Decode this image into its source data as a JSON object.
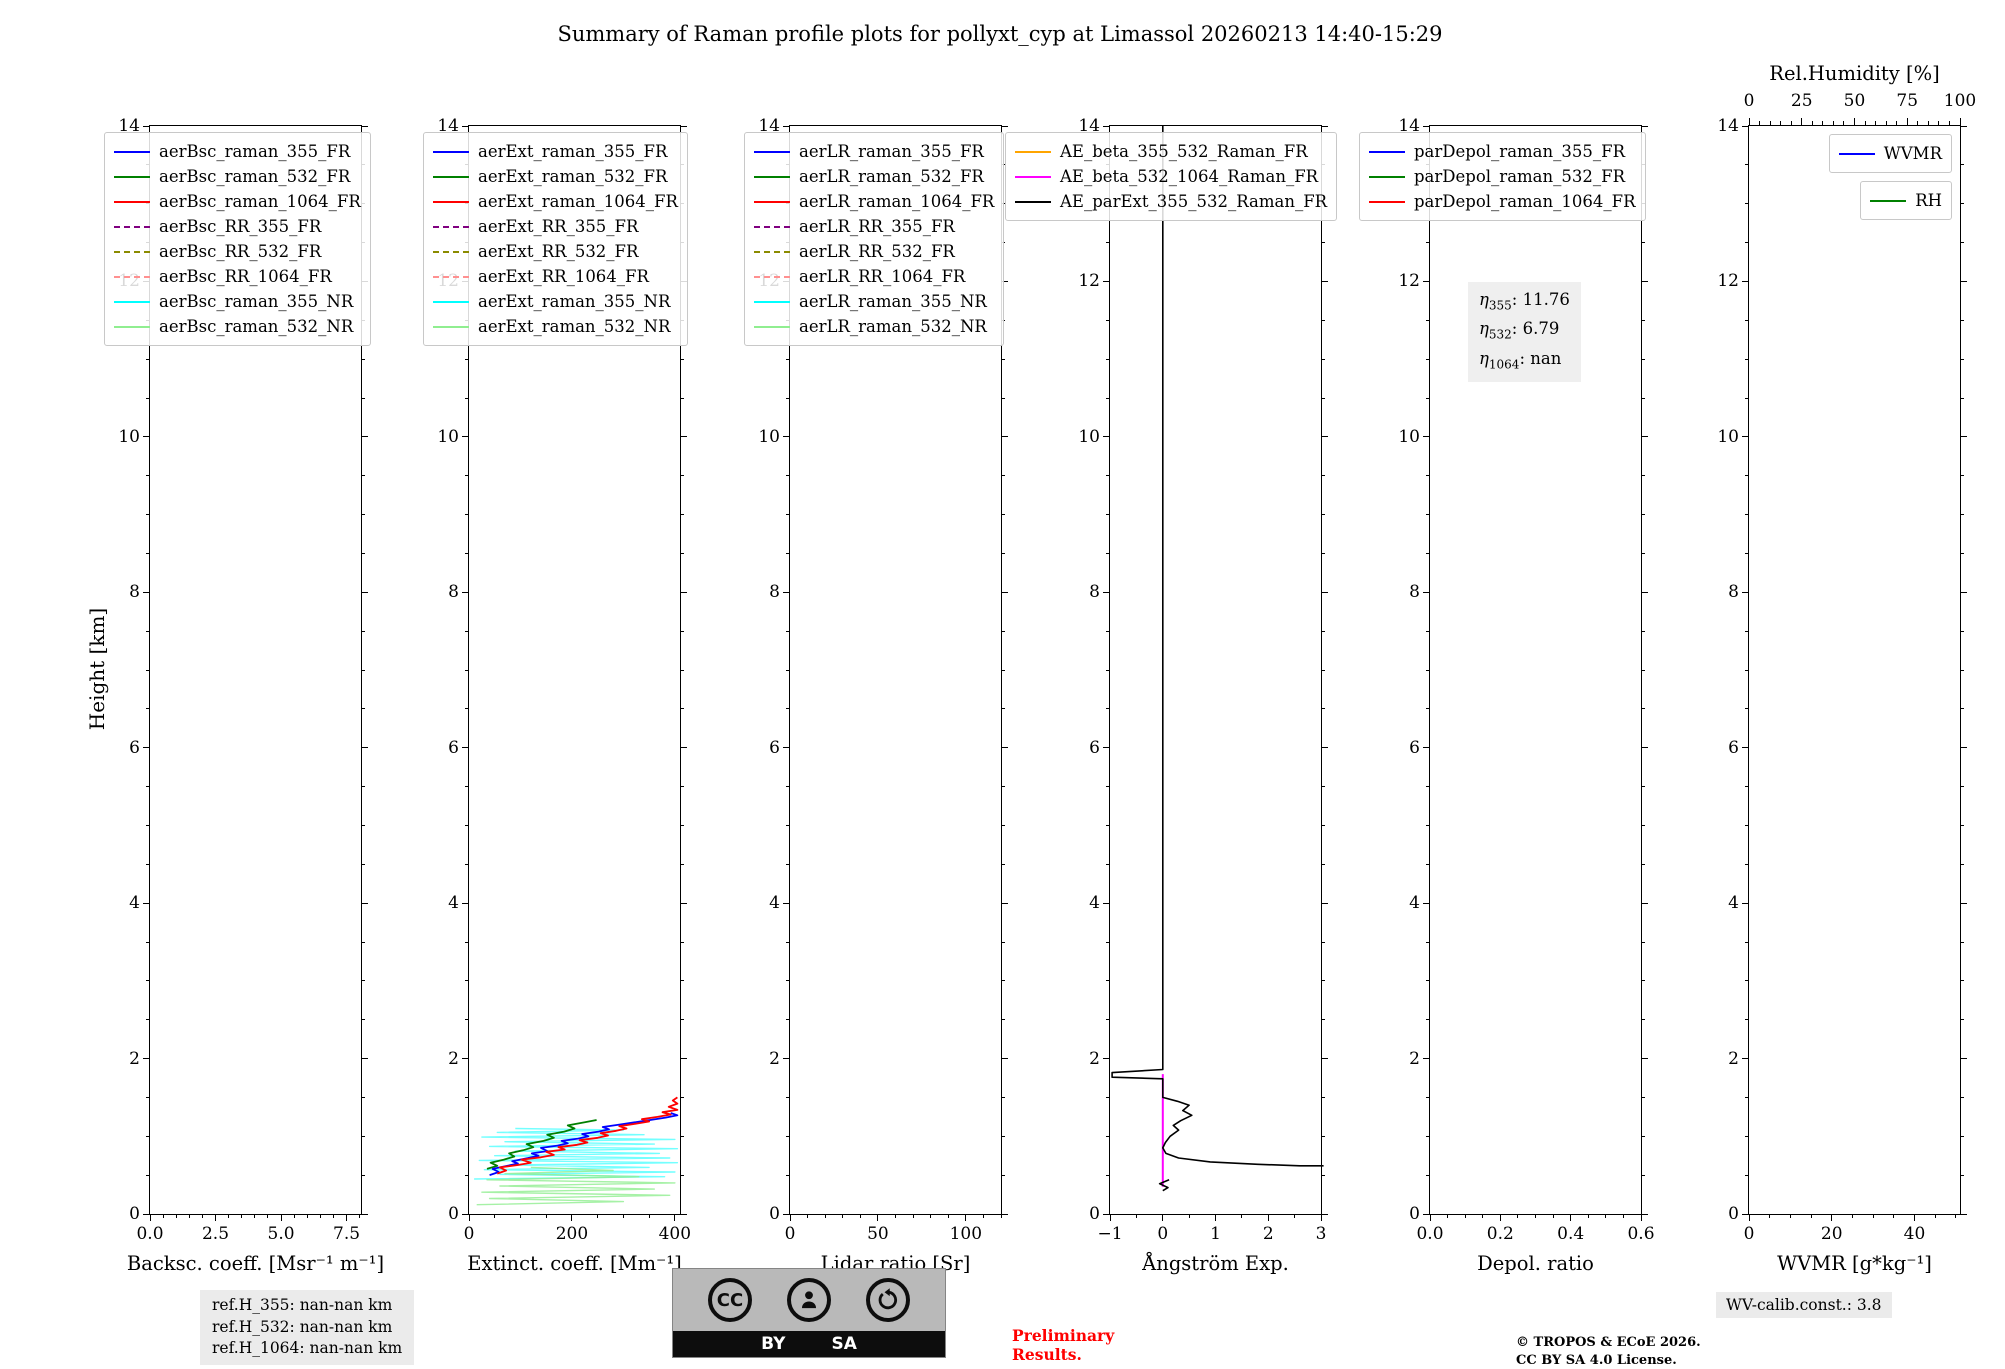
{
  "title": "Summary of Raman profile plots for pollyxt_cyp at Limassol 20260213 14:40-15:29",
  "ylabel": "Height [km]",
  "depol_annotation": {
    "rows": [
      {
        "sym": "η",
        "sub": "355",
        "val": ": 11.76"
      },
      {
        "sym": "η",
        "sub": "532",
        "val": ": 6.79"
      },
      {
        "sym": "η",
        "sub": "1064",
        "val": ": nan"
      }
    ]
  },
  "footer": {
    "refs": [
      "ref.H_355: nan-nan km",
      "ref.H_532: nan-nan km",
      "ref.H_1064: nan-nan km"
    ],
    "preliminary_lines": [
      "Preliminary",
      "Results."
    ],
    "license_lines": [
      "© TROPOS & ECoE 2026.",
      "CC BY SA 4.0 License."
    ],
    "wv_calib": "WV-calib.const.: 3.8",
    "cc_badge": {
      "cc": "CC",
      "by": "BY",
      "sa": "SA"
    }
  },
  "chart_data": [
    {
      "id": "backscatter",
      "type": "line",
      "xlabel": "Backsc. coeff. [Msr⁻¹ m⁻¹]",
      "xlim": [
        0,
        8.05
      ],
      "xticks": [
        {
          "v": 0,
          "l": "0.0"
        },
        {
          "v": 2.5,
          "l": "2.5"
        },
        {
          "v": 5,
          "l": "5.0"
        },
        {
          "v": 7.5,
          "l": "7.5"
        }
      ],
      "xminor": 0.5,
      "ylim": [
        0,
        14
      ],
      "yticks": [
        0,
        2,
        4,
        6,
        8,
        10,
        12,
        14
      ],
      "legend": [
        {
          "label": "aerBsc_raman_355_FR",
          "color": "#0000ff",
          "style": "solid"
        },
        {
          "label": "aerBsc_raman_532_FR",
          "color": "#008000",
          "style": "solid"
        },
        {
          "label": "aerBsc_raman_1064_FR",
          "color": "#ff0000",
          "style": "solid"
        },
        {
          "label": "aerBsc_RR_355_FR",
          "color": "#800080",
          "style": "dashed"
        },
        {
          "label": "aerBsc_RR_532_FR",
          "color": "#8b8b00",
          "style": "dashed"
        },
        {
          "label": "aerBsc_RR_1064_FR",
          "color": "#ff9090",
          "style": "dashed"
        },
        {
          "label": "aerBsc_raman_355_NR",
          "color": "#00ffff",
          "style": "solid"
        },
        {
          "label": "aerBsc_raman_532_NR",
          "color": "#90ee90",
          "style": "solid"
        }
      ],
      "series": []
    },
    {
      "id": "extinction",
      "type": "line",
      "xlabel": "Extinct. coeff. [Mm⁻¹]",
      "xlim": [
        0,
        410
      ],
      "xticks": [
        {
          "v": 0,
          "l": "0"
        },
        {
          "v": 200,
          "l": "200"
        },
        {
          "v": 400,
          "l": "400"
        }
      ],
      "xminor": 50,
      "ylim": [
        0,
        14
      ],
      "yticks": [
        0,
        2,
        4,
        6,
        8,
        10,
        12,
        14
      ],
      "legend": [
        {
          "label": "aerExt_raman_355_FR",
          "color": "#0000ff",
          "style": "solid"
        },
        {
          "label": "aerExt_raman_532_FR",
          "color": "#008000",
          "style": "solid"
        },
        {
          "label": "aerExt_raman_1064_FR",
          "color": "#ff0000",
          "style": "solid"
        },
        {
          "label": "aerExt_RR_355_FR",
          "color": "#800080",
          "style": "dashed"
        },
        {
          "label": "aerExt_RR_532_FR",
          "color": "#8b8b00",
          "style": "dashed"
        },
        {
          "label": "aerExt_RR_1064_FR",
          "color": "#ff9090",
          "style": "dashed"
        },
        {
          "label": "aerExt_raman_355_NR",
          "color": "#00ffff",
          "style": "solid"
        },
        {
          "label": "aerExt_raman_532_NR",
          "color": "#90ee90",
          "style": "solid"
        }
      ],
      "series": [
        {
          "name": "aerExt_raman_355_NR",
          "color": "#00ffff",
          "width": 1.4,
          "opacity": 0.55,
          "points": [
            [
              10,
              0.45
            ],
            [
              380,
              0.48
            ],
            [
              60,
              0.51
            ],
            [
              400,
              0.54
            ],
            [
              30,
              0.57
            ],
            [
              350,
              0.6
            ],
            [
              80,
              0.63
            ],
            [
              405,
              0.66
            ],
            [
              20,
              0.69
            ],
            [
              390,
              0.72
            ],
            [
              50,
              0.75
            ],
            [
              370,
              0.78
            ],
            [
              90,
              0.81
            ],
            [
              405,
              0.84
            ],
            [
              40,
              0.87
            ],
            [
              360,
              0.9
            ],
            [
              70,
              0.93
            ],
            [
              400,
              0.96
            ],
            [
              25,
              0.99
            ],
            [
              340,
              1.02
            ],
            [
              55,
              1.05
            ],
            [
              300,
              1.08
            ],
            [
              90,
              1.1
            ]
          ]
        },
        {
          "name": "aerExt_raman_532_NR",
          "color": "#90ee90",
          "width": 1.4,
          "opacity": 0.8,
          "points": [
            [
              15,
              0.12
            ],
            [
              300,
              0.16
            ],
            [
              40,
              0.2
            ],
            [
              390,
              0.24
            ],
            [
              25,
              0.28
            ],
            [
              360,
              0.32
            ],
            [
              60,
              0.36
            ],
            [
              400,
              0.4
            ],
            [
              35,
              0.44
            ],
            [
              330,
              0.48
            ],
            [
              70,
              0.52
            ],
            [
              280,
              0.56
            ],
            [
              120,
              0.6
            ]
          ]
        },
        {
          "name": "aerExt_raman_532_FR",
          "color": "#008000",
          "width": 1.8,
          "points": [
            [
              35,
              0.58
            ],
            [
              55,
              0.62
            ],
            [
              42,
              0.66
            ],
            [
              68,
              0.7
            ],
            [
              88,
              0.74
            ],
            [
              78,
              0.78
            ],
            [
              105,
              0.82
            ],
            [
              125,
              0.86
            ],
            [
              112,
              0.9
            ],
            [
              145,
              0.94
            ],
            [
              165,
              0.98
            ],
            [
              152,
              1.02
            ],
            [
              185,
              1.06
            ],
            [
              205,
              1.1
            ],
            [
              192,
              1.14
            ],
            [
              225,
              1.18
            ],
            [
              248,
              1.21
            ]
          ]
        },
        {
          "name": "aerExt_raman_355_FR",
          "color": "#0000ff",
          "width": 1.8,
          "points": [
            [
              40,
              0.5
            ],
            [
              58,
              0.54
            ],
            [
              46,
              0.58
            ],
            [
              75,
              0.62
            ],
            [
              95,
              0.65
            ],
            [
              84,
              0.68
            ],
            [
              115,
              0.72
            ],
            [
              135,
              0.75
            ],
            [
              122,
              0.78
            ],
            [
              152,
              0.81
            ],
            [
              140,
              0.85
            ],
            [
              172,
              0.88
            ],
            [
              192,
              0.91
            ],
            [
              180,
              0.94
            ],
            [
              212,
              0.97
            ],
            [
              232,
              1.0
            ],
            [
              220,
              1.03
            ],
            [
              252,
              1.06
            ],
            [
              272,
              1.09
            ],
            [
              260,
              1.12
            ],
            [
              292,
              1.15
            ],
            [
              322,
              1.18
            ],
            [
              352,
              1.21
            ],
            [
              382,
              1.24
            ],
            [
              405,
              1.27
            ],
            [
              392,
              1.3
            ]
          ]
        },
        {
          "name": "aerExt_raman_1064_FR",
          "color": "#ff0000",
          "width": 1.8,
          "points": [
            [
              55,
              0.52
            ],
            [
              72,
              0.56
            ],
            [
              60,
              0.6
            ],
            [
              95,
              0.63
            ],
            [
              120,
              0.66
            ],
            [
              102,
              0.7
            ],
            [
              140,
              0.73
            ],
            [
              165,
              0.76
            ],
            [
              150,
              0.8
            ],
            [
              186,
              0.83
            ],
            [
              174,
              0.86
            ],
            [
              210,
              0.89
            ],
            [
              230,
              0.92
            ],
            [
              215,
              0.95
            ],
            [
              250,
              0.98
            ],
            [
              270,
              1.01
            ],
            [
              256,
              1.04
            ],
            [
              286,
              1.07
            ],
            [
              306,
              1.1
            ],
            [
              292,
              1.13
            ],
            [
              322,
              1.16
            ],
            [
              350,
              1.19
            ],
            [
              336,
              1.22
            ],
            [
              366,
              1.25
            ],
            [
              392,
              1.28
            ],
            [
              376,
              1.31
            ],
            [
              405,
              1.34
            ],
            [
              388,
              1.38
            ],
            [
              405,
              1.42
            ],
            [
              396,
              1.46
            ],
            [
              405,
              1.5
            ]
          ]
        }
      ]
    },
    {
      "id": "lidar_ratio",
      "type": "line",
      "xlabel": "Lidar ratio [Sr]",
      "xlim": [
        0,
        120
      ],
      "xticks": [
        {
          "v": 0,
          "l": "0"
        },
        {
          "v": 50,
          "l": "50"
        },
        {
          "v": 100,
          "l": "100"
        }
      ],
      "xminor": 10,
      "ylim": [
        0,
        14
      ],
      "yticks": [
        0,
        2,
        4,
        6,
        8,
        10,
        12,
        14
      ],
      "legend": [
        {
          "label": "aerLR_raman_355_FR",
          "color": "#0000ff",
          "style": "solid"
        },
        {
          "label": "aerLR_raman_532_FR",
          "color": "#008000",
          "style": "solid"
        },
        {
          "label": "aerLR_raman_1064_FR",
          "color": "#ff0000",
          "style": "solid"
        },
        {
          "label": "aerLR_RR_355_FR",
          "color": "#800080",
          "style": "dashed"
        },
        {
          "label": "aerLR_RR_532_FR",
          "color": "#8b8b00",
          "style": "dashed"
        },
        {
          "label": "aerLR_RR_1064_FR",
          "color": "#ff9090",
          "style": "dashed"
        },
        {
          "label": "aerLR_raman_355_NR",
          "color": "#00ffff",
          "style": "solid"
        },
        {
          "label": "aerLR_raman_532_NR",
          "color": "#90ee90",
          "style": "solid"
        }
      ],
      "series": []
    },
    {
      "id": "angstrom",
      "type": "line",
      "xlabel": "Ångström Exp.",
      "xlim": [
        -1,
        3
      ],
      "xticks": [
        {
          "v": -1,
          "l": "−1"
        },
        {
          "v": 0,
          "l": "0"
        },
        {
          "v": 1,
          "l": "1"
        },
        {
          "v": 2,
          "l": "2"
        },
        {
          "v": 3,
          "l": "3"
        }
      ],
      "xminor": 0.5,
      "ylim": [
        0,
        14
      ],
      "yticks": [
        0,
        2,
        4,
        6,
        8,
        10,
        12,
        14
      ],
      "legend": [
        {
          "label": "AE_beta_355_532_Raman_FR",
          "color": "#ffa500",
          "style": "solid"
        },
        {
          "label": "AE_beta_532_1064_Raman_FR",
          "color": "#ff00ff",
          "style": "solid"
        },
        {
          "label": "AE_parExt_355_532_Raman_FR",
          "color": "#000000",
          "style": "solid"
        }
      ],
      "series": [
        {
          "name": "AE_beta_532_1064_Raman_FR",
          "color": "#ff00ff",
          "width": 2,
          "points": [
            [
              0,
              1.8
            ],
            [
              0,
              0.35
            ]
          ]
        },
        {
          "name": "AE_parExt_355_532_Raman_FR",
          "color": "#000000",
          "width": 1.6,
          "points": [
            [
              0,
              14
            ],
            [
              0,
              1.86
            ],
            [
              -0.96,
              1.82
            ],
            [
              -0.96,
              1.76
            ],
            [
              0,
              1.74
            ],
            [
              0,
              1.5
            ],
            [
              0.28,
              1.45
            ],
            [
              0.5,
              1.4
            ],
            [
              0.38,
              1.33
            ],
            [
              0.55,
              1.27
            ],
            [
              0.34,
              1.2
            ],
            [
              0.2,
              1.14
            ],
            [
              0.3,
              1.08
            ],
            [
              0.14,
              1.0
            ],
            [
              0.05,
              0.92
            ],
            [
              0.0,
              0.85
            ],
            [
              0.06,
              0.78
            ],
            [
              0.3,
              0.72
            ],
            [
              0.9,
              0.67
            ],
            [
              1.8,
              0.64
            ],
            [
              2.6,
              0.62
            ],
            [
              3.05,
              0.62
            ]
          ]
        },
        {
          "name": "AE_parExt_355_532_Raman_FR_seg2",
          "color": "#000000",
          "width": 1.6,
          "points": [
            [
              0.12,
              0.44
            ],
            [
              -0.06,
              0.39
            ],
            [
              0.1,
              0.34
            ],
            [
              0.0,
              0.3
            ]
          ]
        }
      ]
    },
    {
      "id": "depol_ratio",
      "type": "line",
      "xlabel": "Depol. ratio",
      "xlim": [
        0,
        0.6
      ],
      "xticks": [
        {
          "v": 0,
          "l": "0.0"
        },
        {
          "v": 0.2,
          "l": "0.2"
        },
        {
          "v": 0.4,
          "l": "0.4"
        },
        {
          "v": 0.6,
          "l": "0.6"
        }
      ],
      "xminor": 0.05,
      "ylim": [
        0,
        14
      ],
      "yticks": [
        0,
        2,
        4,
        6,
        8,
        10,
        12,
        14
      ],
      "legend": [
        {
          "label": "parDepol_raman_355_FR",
          "color": "#0000ff",
          "style": "solid"
        },
        {
          "label": "parDepol_raman_532_FR",
          "color": "#008000",
          "style": "solid"
        },
        {
          "label": "parDepol_raman_1064_FR",
          "color": "#ff0000",
          "style": "solid"
        }
      ],
      "series": []
    },
    {
      "id": "wvmr",
      "type": "line",
      "xlabel": "WVMR [g*kg⁻¹]",
      "xlim": [
        0,
        51
      ],
      "xticks": [
        {
          "v": 0,
          "l": "0"
        },
        {
          "v": 20,
          "l": "20"
        },
        {
          "v": 40,
          "l": "40"
        }
      ],
      "xminor": 5,
      "ylim": [
        0,
        14
      ],
      "yticks": [
        0,
        2,
        4,
        6,
        8,
        10,
        12,
        14
      ],
      "top_axis": {
        "label": "Rel.Humidity [%]",
        "xlim": [
          0,
          100
        ],
        "ticks": [
          {
            "v": 0,
            "l": "0"
          },
          {
            "v": 25,
            "l": "25"
          },
          {
            "v": 50,
            "l": "50"
          },
          {
            "v": 75,
            "l": "75"
          },
          {
            "v": 100,
            "l": "100"
          }
        ],
        "minor": 5
      },
      "legend_boxes": [
        [
          {
            "label": "WVMR",
            "color": "#0000ff",
            "style": "solid"
          }
        ],
        [
          {
            "label": "RH",
            "color": "#008000",
            "style": "solid"
          }
        ]
      ],
      "series": []
    }
  ]
}
